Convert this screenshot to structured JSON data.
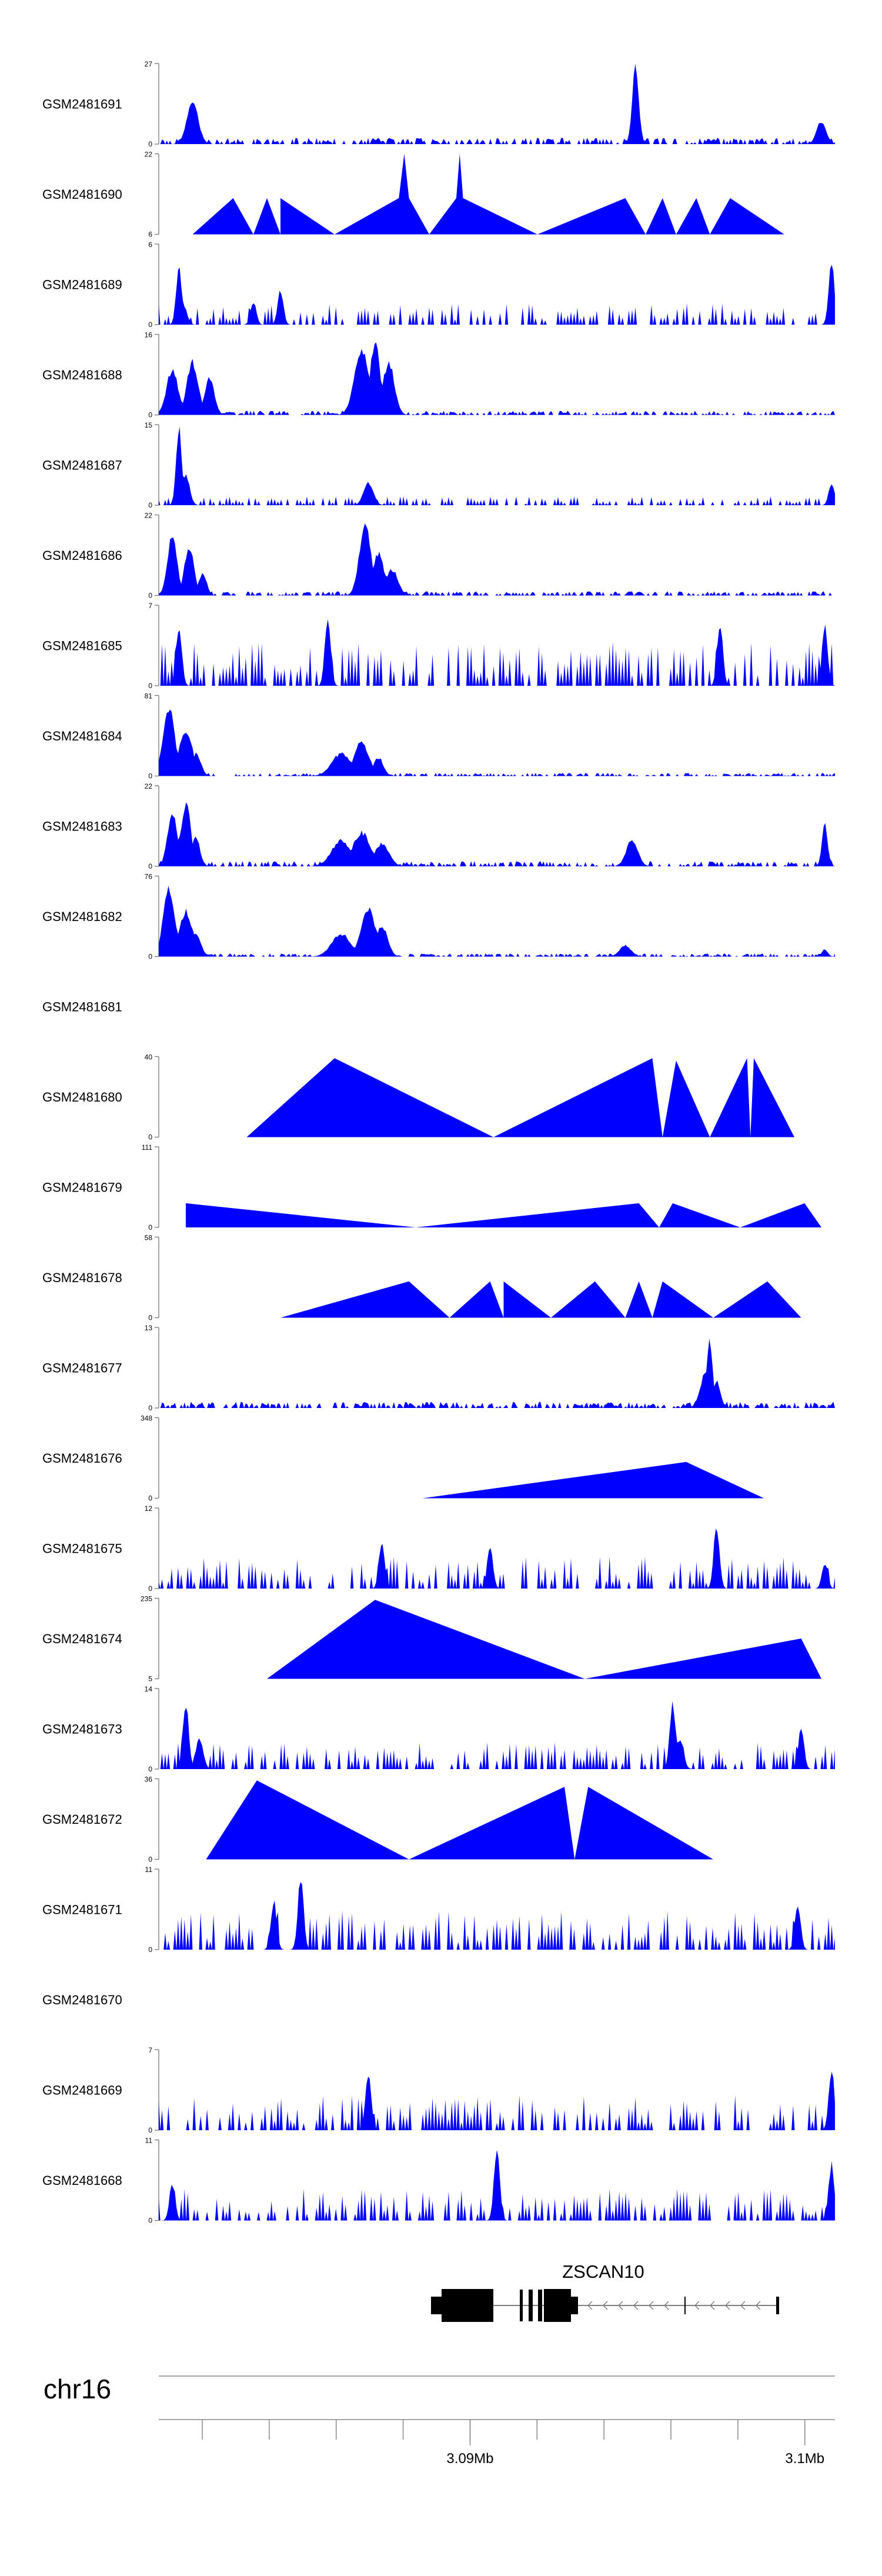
{
  "chart_data": {
    "type": "area",
    "title": "",
    "chromosome": "chr16",
    "gene": {
      "name": "ZSCAN10",
      "strand": "-"
    },
    "x_axis": {
      "range_mb": [
        3.0807,
        3.1009
      ],
      "ticks_mb": [
        3.082,
        3.084,
        3.086,
        3.088,
        3.09,
        3.092,
        3.094,
        3.096,
        3.098,
        3.1
      ],
      "labeled_ticks": [
        {
          "mb": 3.09,
          "label": "3.09Mb"
        },
        {
          "mb": 3.1,
          "label": "3.1Mb"
        }
      ]
    },
    "fill_color": "#0000ff",
    "tracks": [
      {
        "name": "GSM2481691",
        "ymin": "0",
        "ymax": "27",
        "seed": 11,
        "style": "dense",
        "base": 0.06,
        "peaks": [
          [
            0.05,
            0.55,
            0.012
          ],
          [
            0.705,
            1.0,
            0.007
          ],
          [
            0.98,
            0.3,
            0.01
          ]
        ]
      },
      {
        "name": "GSM2481690",
        "ymin": "6",
        "ymax": "22",
        "seed": 12,
        "style": "tri",
        "verts": [
          [
            0.05,
            0
          ],
          [
            0.11,
            0.45
          ],
          [
            0.14,
            0
          ],
          [
            0.16,
            0.45
          ],
          [
            0.18,
            0
          ],
          [
            0.18,
            0.45
          ],
          [
            0.26,
            0
          ],
          [
            0.355,
            0.45
          ],
          [
            0.363,
            1.0
          ],
          [
            0.37,
            0.45
          ],
          [
            0.4,
            0
          ],
          [
            0.44,
            0.45
          ],
          [
            0.445,
            1.0
          ],
          [
            0.45,
            0.45
          ],
          [
            0.56,
            0
          ],
          [
            0.69,
            0.45
          ],
          [
            0.72,
            0
          ],
          [
            0.745,
            0.45
          ],
          [
            0.765,
            0
          ],
          [
            0.795,
            0.45
          ],
          [
            0.815,
            0
          ],
          [
            0.845,
            0.45
          ],
          [
            0.925,
            0
          ]
        ]
      },
      {
        "name": "GSM2481689",
        "ymin": "0",
        "ymax": "6",
        "seed": 13,
        "style": "spiky",
        "base": 0.12,
        "peaks": [
          [
            0.03,
            0.75,
            0.006
          ],
          [
            0.035,
            0.3,
            0.008
          ],
          [
            0.14,
            0.3,
            0.006
          ],
          [
            0.18,
            0.45,
            0.006
          ],
          [
            0.995,
            0.8,
            0.006
          ]
        ]
      },
      {
        "name": "GSM2481688",
        "ymin": "0",
        "ymax": "16",
        "seed": 14,
        "style": "dense",
        "base": 0.04,
        "peaks": [
          [
            0.02,
            0.6,
            0.012
          ],
          [
            0.05,
            0.7,
            0.012
          ],
          [
            0.075,
            0.5,
            0.01
          ],
          [
            0.3,
            0.85,
            0.015
          ],
          [
            0.32,
            1.0,
            0.01
          ],
          [
            0.34,
            0.7,
            0.012
          ]
        ]
      },
      {
        "name": "GSM2481687",
        "ymin": "0",
        "ymax": "15",
        "seed": 15,
        "style": "spiky",
        "base": 0.05,
        "peaks": [
          [
            0.03,
            1.0,
            0.006
          ],
          [
            0.04,
            0.4,
            0.008
          ],
          [
            0.31,
            0.3,
            0.01
          ],
          [
            0.995,
            0.3,
            0.006
          ]
        ]
      },
      {
        "name": "GSM2481686",
        "ymin": "0",
        "ymax": "22",
        "seed": 16,
        "style": "dense",
        "base": 0.04,
        "peaks": [
          [
            0.02,
            0.8,
            0.01
          ],
          [
            0.045,
            0.65,
            0.01
          ],
          [
            0.065,
            0.3,
            0.008
          ],
          [
            0.305,
            0.95,
            0.012
          ],
          [
            0.325,
            0.55,
            0.012
          ],
          [
            0.345,
            0.35,
            0.012
          ]
        ]
      },
      {
        "name": "GSM2481685",
        "ymin": "0",
        "ymax": "7",
        "seed": 17,
        "style": "spiky",
        "base": 0.25,
        "peaks": [
          [
            0.03,
            0.8,
            0.006
          ],
          [
            0.25,
            0.95,
            0.006
          ],
          [
            0.83,
            0.8,
            0.006
          ],
          [
            0.985,
            0.8,
            0.006
          ]
        ]
      },
      {
        "name": "GSM2481684",
        "ymin": "0",
        "ymax": "81",
        "seed": 18,
        "style": "dense",
        "base": 0.03,
        "peaks": [
          [
            0.015,
            0.9,
            0.012
          ],
          [
            0.04,
            0.6,
            0.014
          ],
          [
            0.055,
            0.3,
            0.01
          ],
          [
            0.27,
            0.3,
            0.02
          ],
          [
            0.3,
            0.45,
            0.015
          ],
          [
            0.325,
            0.25,
            0.01
          ]
        ]
      },
      {
        "name": "GSM2481683",
        "ymin": "0",
        "ymax": "22",
        "seed": 19,
        "style": "dense",
        "base": 0.05,
        "peaks": [
          [
            0.02,
            0.7,
            0.01
          ],
          [
            0.04,
            0.85,
            0.01
          ],
          [
            0.055,
            0.4,
            0.008
          ],
          [
            0.27,
            0.35,
            0.02
          ],
          [
            0.3,
            0.45,
            0.018
          ],
          [
            0.33,
            0.3,
            0.015
          ],
          [
            0.7,
            0.35,
            0.012
          ],
          [
            0.985,
            0.55,
            0.006
          ]
        ]
      },
      {
        "name": "GSM2481682",
        "ymin": "0",
        "ymax": "76",
        "seed": 20,
        "style": "dense",
        "base": 0.03,
        "peaks": [
          [
            0.015,
            0.9,
            0.012
          ],
          [
            0.04,
            0.6,
            0.014
          ],
          [
            0.055,
            0.3,
            0.01
          ],
          [
            0.27,
            0.3,
            0.02
          ],
          [
            0.31,
            0.65,
            0.015
          ],
          [
            0.33,
            0.4,
            0.012
          ],
          [
            0.69,
            0.15,
            0.012
          ],
          [
            0.985,
            0.1,
            0.006
          ]
        ]
      },
      {
        "name": "GSM2481681",
        "ymin": "",
        "ymax": "",
        "style": "empty"
      },
      {
        "name": "GSM2481680",
        "ymin": "0",
        "ymax": "40",
        "seed": 22,
        "style": "tri",
        "verts": [
          [
            0.13,
            0
          ],
          [
            0.26,
            0.98
          ],
          [
            0.495,
            0
          ],
          [
            0.73,
            0.98
          ],
          [
            0.745,
            0
          ],
          [
            0.765,
            0.95
          ],
          [
            0.815,
            0
          ],
          [
            0.87,
            0.98
          ],
          [
            0.875,
            0
          ],
          [
            0.88,
            0.98
          ],
          [
            0.94,
            0
          ]
        ]
      },
      {
        "name": "GSM2481679",
        "ymin": "0",
        "ymax": "111",
        "seed": 23,
        "style": "tri",
        "verts": [
          [
            0.04,
            0
          ],
          [
            0.04,
            0.3
          ],
          [
            0.04,
            0.3
          ],
          [
            0.04,
            0.3
          ],
          [
            0.38,
            0
          ],
          [
            0.71,
            0.3
          ],
          [
            0.74,
            0
          ],
          [
            0.76,
            0.3
          ],
          [
            0.86,
            0
          ],
          [
            0.955,
            0.3
          ],
          [
            0.955,
            0.3
          ],
          [
            0.98,
            0
          ]
        ]
      },
      {
        "name": "GSM2481678",
        "ymin": "0",
        "ymax": "58",
        "seed": 24,
        "style": "tri",
        "verts": [
          [
            0.18,
            0
          ],
          [
            0.37,
            0.45
          ],
          [
            0.375,
            0
          ],
          [
            0.37,
            0.45
          ],
          [
            0.43,
            0
          ],
          [
            0.49,
            0.45
          ],
          [
            0.51,
            0
          ],
          [
            0.51,
            0.45
          ],
          [
            0.58,
            0
          ],
          [
            0.645,
            0.45
          ],
          [
            0.69,
            0
          ],
          [
            0.71,
            0.45
          ],
          [
            0.73,
            0
          ],
          [
            0.745,
            0.45
          ],
          [
            0.82,
            0
          ],
          [
            0.9,
            0.45
          ],
          [
            0.95,
            0
          ]
        ]
      },
      {
        "name": "GSM2481677",
        "ymin": "0",
        "ymax": "13",
        "seed": 25,
        "style": "dense",
        "base": 0.06,
        "peaks": [
          [
            0.815,
            0.9,
            0.006
          ],
          [
            0.81,
            0.5,
            0.012
          ],
          [
            0.825,
            0.35,
            0.008
          ]
        ]
      },
      {
        "name": "GSM2481676",
        "ymin": "0",
        "ymax": "348",
        "seed": 26,
        "style": "tri",
        "verts": [
          [
            0.39,
            0
          ],
          [
            0.78,
            0.45
          ],
          [
            0.78,
            0.45
          ],
          [
            0.895,
            0
          ]
        ]
      },
      {
        "name": "GSM2481675",
        "ymin": "0",
        "ymax": "12",
        "seed": 27,
        "style": "spiky",
        "base": 0.18,
        "peaks": [
          [
            0.33,
            0.6,
            0.006
          ],
          [
            0.49,
            0.55,
            0.006
          ],
          [
            0.825,
            0.85,
            0.006
          ],
          [
            0.985,
            0.35,
            0.006
          ]
        ]
      },
      {
        "name": "GSM2481674",
        "ymin": "5",
        "ymax": "235",
        "seed": 28,
        "style": "tri",
        "verts": [
          [
            0.16,
            0
          ],
          [
            0.32,
            0.98
          ],
          [
            0.63,
            0
          ],
          [
            0.95,
            0.5
          ],
          [
            0.98,
            0
          ]
        ]
      },
      {
        "name": "GSM2481673",
        "ymin": "0",
        "ymax": "14",
        "seed": 29,
        "style": "spiky",
        "base": 0.15,
        "peaks": [
          [
            0.04,
            0.9,
            0.006
          ],
          [
            0.06,
            0.4,
            0.008
          ],
          [
            0.76,
            0.9,
            0.006
          ],
          [
            0.77,
            0.4,
            0.008
          ],
          [
            0.95,
            0.55,
            0.006
          ]
        ]
      },
      {
        "name": "GSM2481672",
        "ymin": "0",
        "ymax": "36",
        "seed": 30,
        "style": "tri",
        "verts": [
          [
            0.07,
            0
          ],
          [
            0.145,
            0.98
          ],
          [
            0.37,
            0
          ],
          [
            0.6,
            0.9
          ],
          [
            0.615,
            0
          ],
          [
            0.635,
            0.9
          ],
          [
            0.82,
            0
          ]
        ]
      },
      {
        "name": "GSM2481671",
        "ymin": "0",
        "ymax": "11",
        "seed": 31,
        "style": "spiky",
        "base": 0.22,
        "peaks": [
          [
            0.21,
            0.95,
            0.006
          ],
          [
            0.17,
            0.65,
            0.006
          ],
          [
            0.945,
            0.6,
            0.006
          ]
        ]
      },
      {
        "name": "GSM2481670",
        "ymin": "",
        "ymax": "",
        "style": "empty"
      },
      {
        "name": "GSM2481669",
        "ymin": "0",
        "ymax": "7",
        "seed": 33,
        "style": "spiky",
        "base": 0.2,
        "peaks": [
          [
            0.31,
            0.75,
            0.006
          ],
          [
            0.995,
            0.8,
            0.006
          ]
        ]
      },
      {
        "name": "GSM2481668",
        "ymin": "0",
        "ymax": "11",
        "seed": 34,
        "style": "spiky",
        "base": 0.18,
        "peaks": [
          [
            0.02,
            0.5,
            0.006
          ],
          [
            0.5,
            0.95,
            0.006
          ],
          [
            0.995,
            0.75,
            0.006
          ]
        ]
      }
    ]
  }
}
